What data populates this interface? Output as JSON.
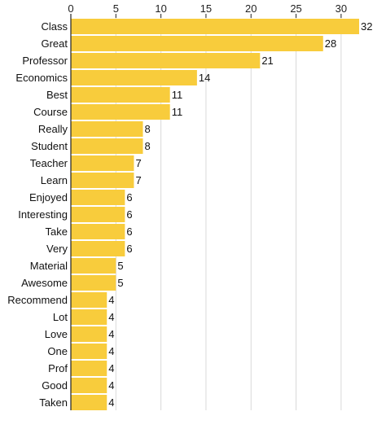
{
  "chart_data": {
    "type": "bar",
    "orientation": "horizontal",
    "title": "",
    "xlabel": "",
    "ylabel": "",
    "categories": [
      "Class",
      "Great",
      "Professor",
      "Economics",
      "Best",
      "Course",
      "Really",
      "Student",
      "Teacher",
      "Learn",
      "Enjoyed",
      "Interesting",
      "Take",
      "Very",
      "Material",
      "Awesome",
      "Recommend",
      "Lot",
      "Love",
      "One",
      "Prof",
      "Good",
      "Taken"
    ],
    "values": [
      32,
      28,
      21,
      14,
      11,
      11,
      8,
      8,
      7,
      7,
      6,
      6,
      6,
      6,
      5,
      5,
      4,
      4,
      4,
      4,
      4,
      4,
      4
    ],
    "value_labels": [
      "32",
      "28",
      "21",
      "14",
      "11",
      "11",
      "8",
      "8",
      "7",
      "7",
      "6",
      "6",
      "6",
      "6",
      "5",
      "5",
      "4",
      "4",
      "4",
      "4",
      "4",
      "4",
      "4"
    ],
    "xlim": [
      0,
      32
    ],
    "x_ticks": [
      0,
      5,
      10,
      15,
      20,
      25,
      30
    ],
    "x_tick_labels": [
      "0",
      "5",
      "10",
      "15",
      "20",
      "25",
      "30"
    ],
    "x_axis_position": "top",
    "grid": true,
    "legend": "none",
    "colors": {
      "bar": "#f8cc3c",
      "grid": "#d9d9d9",
      "axis": "#222222",
      "text": "#111111"
    }
  }
}
